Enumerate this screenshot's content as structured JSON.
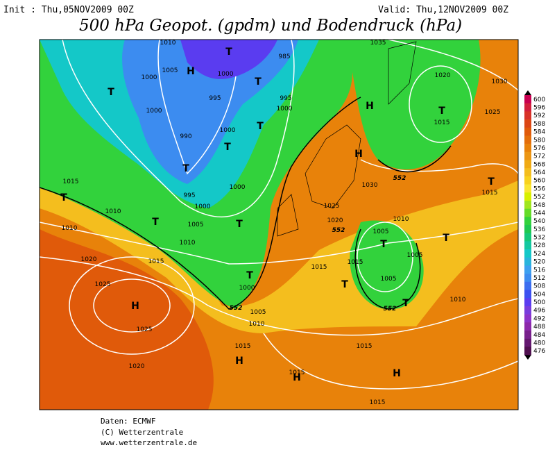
{
  "header": {
    "init": "Init : Thu,05NOV2009 00Z",
    "valid": "Valid: Thu,12NOV2009 00Z",
    "title": "500 hPa Geopot. (gpdm) und Bodendruck (hPa)"
  },
  "map": {
    "labels": [
      "T",
      "1000",
      "995",
      "990",
      "T",
      "995",
      "1000",
      "1000",
      "T",
      "1000",
      "T",
      "995",
      "1000",
      "T",
      "1015",
      "T",
      "1010",
      "1010",
      "T",
      "1005",
      "T",
      "1010",
      "1015",
      "1020",
      "1025",
      "H",
      "1025",
      "1020",
      "1000",
      "T",
      "1005",
      "1010",
      "1015",
      "H",
      "1015",
      "1015",
      "1020",
      "1025",
      "1030",
      "H",
      "H",
      "1035",
      "1020",
      "T",
      "1015",
      "1025",
      "1030",
      "T",
      "1015",
      "1010",
      "1005",
      "T",
      "1005",
      "1005",
      "T",
      "T",
      "1010",
      "1015",
      "H",
      "1015",
      "H",
      "1015",
      "T",
      "1005",
      "H",
      "1000",
      "T",
      "985",
      "1010",
      "1000"
    ],
    "contour_labels": [
      "552",
      "552",
      "552",
      "552"
    ]
  },
  "colorbar": {
    "levels": [
      600,
      596,
      592,
      588,
      584,
      580,
      576,
      572,
      568,
      564,
      560,
      556,
      552,
      548,
      544,
      540,
      536,
      532,
      528,
      524,
      520,
      516,
      512,
      508,
      504,
      500,
      496,
      492,
      488,
      484,
      480,
      476
    ],
    "colors": [
      "#c80050",
      "#d21e3c",
      "#d83228",
      "#dc4614",
      "#e05a0a",
      "#e46e0a",
      "#e8820a",
      "#ec9614",
      "#f0aa14",
      "#f4be1e",
      "#f8d21e",
      "#fae632",
      "#d8f000",
      "#a0e61e",
      "#64dc28",
      "#32d23c",
      "#1ec850",
      "#14c878",
      "#14c8a0",
      "#14c8c8",
      "#28b4dc",
      "#3ca0f0",
      "#3c8cf0",
      "#3c6ef0",
      "#3c50f0",
      "#5a3cf0",
      "#783cdc",
      "#8c32c8",
      "#8c28aa",
      "#78208c",
      "#641870",
      "#501050"
    ]
  },
  "footer": [
    "Daten: ECMWF",
    "(C) Wetterzentrale",
    "www.wetterzentrale.de"
  ]
}
